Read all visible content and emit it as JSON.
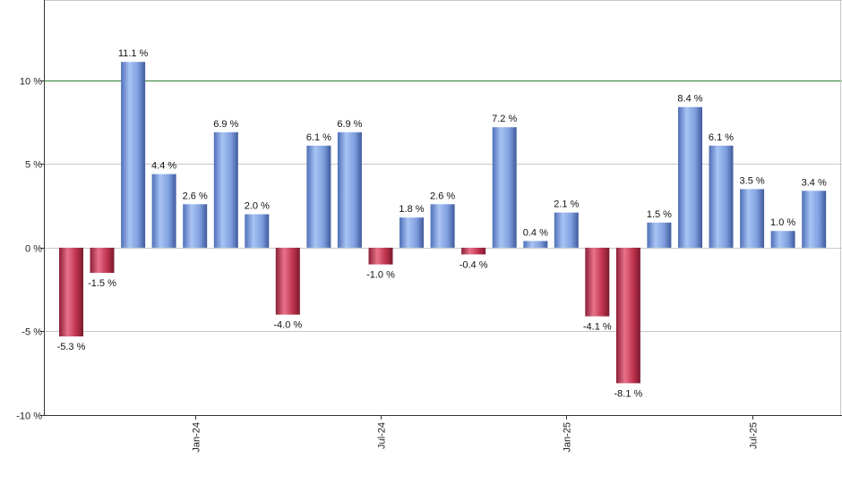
{
  "chart_data": {
    "type": "bar",
    "title": "",
    "xlabel": "",
    "ylabel": "",
    "ylim": [
      -10,
      14.8
    ],
    "yticks": [
      {
        "value": -10,
        "label": "-10 %"
      },
      {
        "value": -5,
        "label": "-5 %"
      },
      {
        "value": 0,
        "label": "0 %"
      },
      {
        "value": 5,
        "label": "5 %"
      },
      {
        "value": 10,
        "label": "10 %"
      }
    ],
    "reference_line": {
      "value": 10,
      "color": "#2e7d32"
    },
    "grid": true,
    "legend": "none",
    "colors": {
      "positive": "#7f9fdf",
      "negative": "#c0344f",
      "grid": "#c8c8c8",
      "axis": "#333333"
    },
    "categories": [
      "Sep-23",
      "Oct-23",
      "Nov-23",
      "Dec-23",
      "Jan-24",
      "Feb-24",
      "Mar-24",
      "Apr-24",
      "May-24",
      "Jun-24",
      "Jul-24",
      "Aug-24",
      "Sep-24",
      "Oct-24",
      "Nov-24",
      "Dec-24",
      "Jan-25",
      "Feb-25",
      "Mar-25",
      "Apr-25",
      "May-25",
      "Jun-25",
      "Jul-25",
      "Aug-25",
      "Sep-25"
    ],
    "values": [
      -5.3,
      -1.5,
      11.1,
      4.4,
      2.6,
      6.9,
      2.0,
      -4.0,
      6.1,
      6.9,
      -1.0,
      1.8,
      2.6,
      -0.4,
      7.2,
      0.4,
      2.1,
      -4.1,
      -8.1,
      1.5,
      8.4,
      6.1,
      3.5,
      1.0,
      3.4
    ],
    "labels": [
      "-5.3 %",
      "-1.5 %",
      "11.1 %",
      "4.4 %",
      "2.6 %",
      "6.9 %",
      "2.0 %",
      "-4.0 %",
      "6.1 %",
      "6.9 %",
      "-1.0 %",
      "1.8 %",
      "2.6 %",
      "-0.4 %",
      "7.2 %",
      "0.4 %",
      "2.1 %",
      "-4.1 %",
      "-8.1 %",
      "1.5 %",
      "8.4 %",
      "6.1 %",
      "3.5 %",
      "1.0 %",
      "3.4 %"
    ],
    "xticks": [
      {
        "index": 4,
        "label": "Jan-24"
      },
      {
        "index": 10,
        "label": "Jul-24"
      },
      {
        "index": 16,
        "label": "Jan-25"
      },
      {
        "index": 22,
        "label": "Jul-25"
      }
    ]
  }
}
